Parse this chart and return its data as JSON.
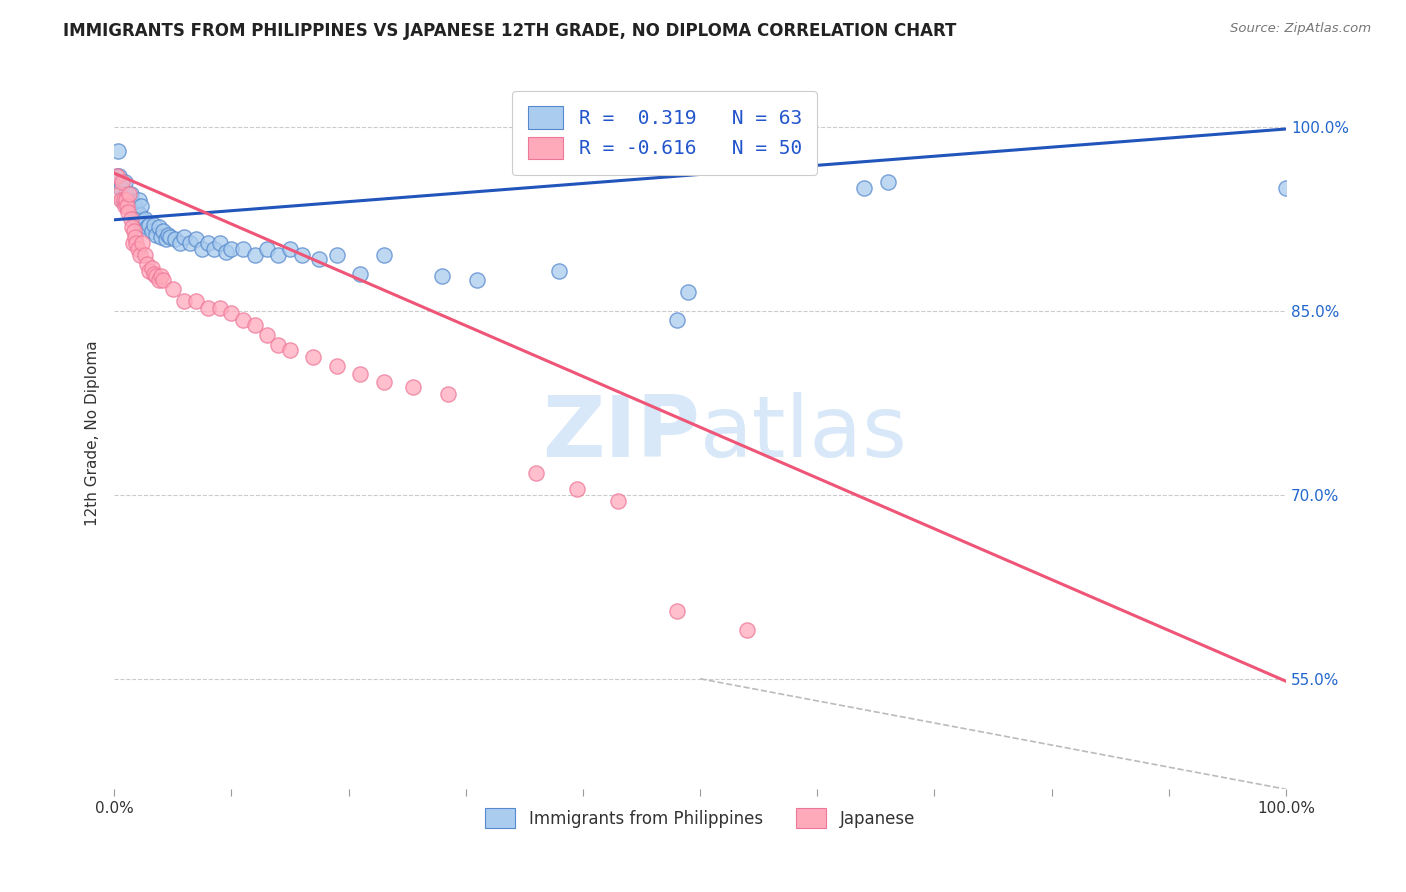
{
  "title": "IMMIGRANTS FROM PHILIPPINES VS JAPANESE 12TH GRADE, NO DIPLOMA CORRELATION CHART",
  "source": "Source: ZipAtlas.com",
  "ylabel": "12th Grade, No Diploma",
  "xlim": [
    0.0,
    1.0
  ],
  "ylim": [
    0.46,
    1.04
  ],
  "ytick_positions": [
    0.55,
    0.7,
    0.85,
    1.0
  ],
  "ytick_labels": [
    "55.0%",
    "70.0%",
    "85.0%",
    "100.0%"
  ],
  "blue_color": "#AACCEE",
  "blue_edge_color": "#5588CC",
  "pink_color": "#FFAABB",
  "pink_edge_color": "#EE7799",
  "blue_line_color": "#2255BB",
  "pink_line_color": "#EE5577",
  "dashed_line_color": "#BBBBBB",
  "watermark_color": "#D8E8F8",
  "blue_scatter": [
    [
      0.002,
      0.96
    ],
    [
      0.003,
      0.98
    ],
    [
      0.004,
      0.96
    ],
    [
      0.005,
      0.95
    ],
    [
      0.006,
      0.95
    ],
    [
      0.007,
      0.94
    ],
    [
      0.008,
      0.94
    ],
    [
      0.009,
      0.955
    ],
    [
      0.01,
      0.945
    ],
    [
      0.011,
      0.935
    ],
    [
      0.012,
      0.94
    ],
    [
      0.013,
      0.935
    ],
    [
      0.014,
      0.945
    ],
    [
      0.015,
      0.935
    ],
    [
      0.016,
      0.938
    ],
    [
      0.017,
      0.93
    ],
    [
      0.018,
      0.935
    ],
    [
      0.019,
      0.925
    ],
    [
      0.02,
      0.93
    ],
    [
      0.021,
      0.94
    ],
    [
      0.022,
      0.928
    ],
    [
      0.023,
      0.935
    ],
    [
      0.024,
      0.92
    ],
    [
      0.026,
      0.925
    ],
    [
      0.028,
      0.918
    ],
    [
      0.03,
      0.92
    ],
    [
      0.032,
      0.915
    ],
    [
      0.034,
      0.92
    ],
    [
      0.036,
      0.912
    ],
    [
      0.038,
      0.918
    ],
    [
      0.04,
      0.91
    ],
    [
      0.042,
      0.915
    ],
    [
      0.044,
      0.908
    ],
    [
      0.046,
      0.912
    ],
    [
      0.048,
      0.91
    ],
    [
      0.052,
      0.908
    ],
    [
      0.056,
      0.905
    ],
    [
      0.06,
      0.91
    ],
    [
      0.065,
      0.905
    ],
    [
      0.07,
      0.908
    ],
    [
      0.075,
      0.9
    ],
    [
      0.08,
      0.905
    ],
    [
      0.085,
      0.9
    ],
    [
      0.09,
      0.905
    ],
    [
      0.095,
      0.898
    ],
    [
      0.1,
      0.9
    ],
    [
      0.11,
      0.9
    ],
    [
      0.12,
      0.895
    ],
    [
      0.13,
      0.9
    ],
    [
      0.14,
      0.895
    ],
    [
      0.15,
      0.9
    ],
    [
      0.16,
      0.895
    ],
    [
      0.175,
      0.892
    ],
    [
      0.19,
      0.895
    ],
    [
      0.21,
      0.88
    ],
    [
      0.23,
      0.895
    ],
    [
      0.28,
      0.878
    ],
    [
      0.31,
      0.875
    ],
    [
      0.38,
      0.882
    ],
    [
      0.48,
      0.842
    ],
    [
      0.49,
      0.865
    ],
    [
      0.64,
      0.95
    ],
    [
      0.66,
      0.955
    ],
    [
      1.0,
      0.95
    ]
  ],
  "pink_scatter": [
    [
      0.002,
      0.96
    ],
    [
      0.004,
      0.945
    ],
    [
      0.006,
      0.94
    ],
    [
      0.007,
      0.955
    ],
    [
      0.008,
      0.94
    ],
    [
      0.009,
      0.935
    ],
    [
      0.01,
      0.94
    ],
    [
      0.011,
      0.935
    ],
    [
      0.012,
      0.93
    ],
    [
      0.013,
      0.945
    ],
    [
      0.014,
      0.925
    ],
    [
      0.015,
      0.918
    ],
    [
      0.016,
      0.905
    ],
    [
      0.017,
      0.915
    ],
    [
      0.018,
      0.91
    ],
    [
      0.019,
      0.905
    ],
    [
      0.02,
      0.9
    ],
    [
      0.022,
      0.895
    ],
    [
      0.024,
      0.905
    ],
    [
      0.026,
      0.895
    ],
    [
      0.028,
      0.888
    ],
    [
      0.03,
      0.882
    ],
    [
      0.032,
      0.885
    ],
    [
      0.034,
      0.88
    ],
    [
      0.036,
      0.878
    ],
    [
      0.038,
      0.875
    ],
    [
      0.04,
      0.878
    ],
    [
      0.042,
      0.875
    ],
    [
      0.05,
      0.868
    ],
    [
      0.06,
      0.858
    ],
    [
      0.07,
      0.858
    ],
    [
      0.08,
      0.852
    ],
    [
      0.09,
      0.852
    ],
    [
      0.1,
      0.848
    ],
    [
      0.11,
      0.842
    ],
    [
      0.12,
      0.838
    ],
    [
      0.13,
      0.83
    ],
    [
      0.14,
      0.822
    ],
    [
      0.15,
      0.818
    ],
    [
      0.17,
      0.812
    ],
    [
      0.19,
      0.805
    ],
    [
      0.21,
      0.798
    ],
    [
      0.23,
      0.792
    ],
    [
      0.255,
      0.788
    ],
    [
      0.285,
      0.782
    ],
    [
      0.36,
      0.718
    ],
    [
      0.395,
      0.705
    ],
    [
      0.43,
      0.695
    ],
    [
      0.48,
      0.605
    ],
    [
      0.54,
      0.59
    ]
  ],
  "blue_line_x": [
    0.0,
    1.0
  ],
  "blue_line_y": [
    0.924,
    0.998
  ],
  "pink_line_x": [
    0.0,
    1.0
  ],
  "pink_line_y": [
    0.962,
    0.548
  ],
  "diag_line_x": [
    0.5,
    1.0
  ],
  "diag_line_y": [
    0.55,
    0.46
  ]
}
